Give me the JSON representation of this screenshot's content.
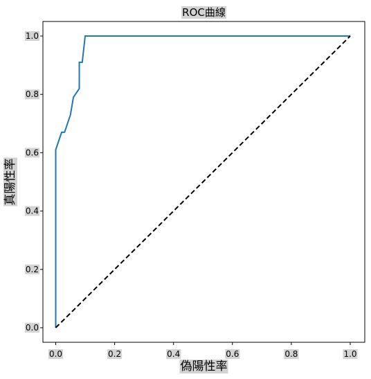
{
  "chart_data": {
    "type": "line",
    "title": "ROC曲線",
    "xlabel": "偽陽性率",
    "ylabel": "真陽性率",
    "xlim": [
      0.0,
      1.0
    ],
    "ylim": [
      0.0,
      1.0
    ],
    "x_ticks": [
      "0.0",
      "0.2",
      "0.4",
      "0.6",
      "0.8",
      "1.0"
    ],
    "y_ticks": [
      "0.0",
      "0.2",
      "0.4",
      "0.6",
      "0.8",
      "1.0"
    ],
    "grid": false,
    "label_background": "#d3d3d3",
    "series": [
      {
        "style": "solid",
        "color": "#1f77b4",
        "x": [
          0.0,
          0.0,
          0.0,
          0.02,
          0.03,
          0.05,
          0.06,
          0.06,
          0.08,
          0.08,
          0.09,
          0.1,
          0.1,
          1.0
        ],
        "y": [
          0.0,
          0.0,
          0.61,
          0.67,
          0.67,
          0.73,
          0.79,
          0.79,
          0.82,
          0.91,
          0.91,
          1.0,
          1.0,
          1.0
        ]
      },
      {
        "style": "dashed",
        "color": "#000000",
        "x": [
          0.0,
          1.0
        ],
        "y": [
          0.0,
          1.0
        ]
      }
    ]
  }
}
